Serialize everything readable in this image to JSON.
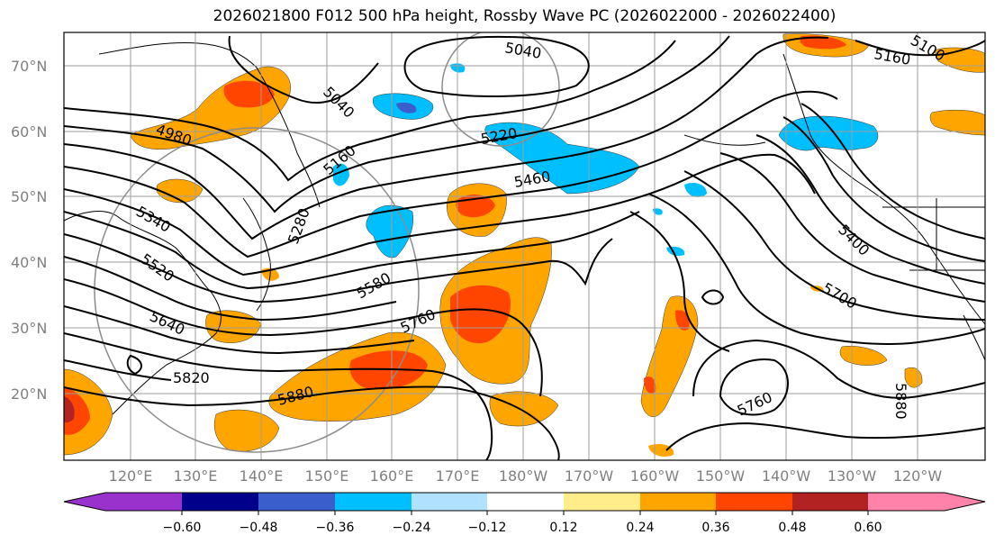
{
  "title": "2026021800 F012 500 hPa height, Rossby Wave PC (2026022000 - 2026022400)",
  "lat_labels": [
    "70°N",
    "60°N",
    "50°N",
    "40°N",
    "30°N",
    "20°N"
  ],
  "lon_labels": [
    "120°E",
    "130°E",
    "140°E",
    "150°E",
    "160°E",
    "170°E",
    "180°W",
    "170°W",
    "160°W",
    "150°W",
    "140°W",
    "130°W",
    "120°W"
  ],
  "contour_labels": [
    "5040",
    "5040",
    "5100",
    "5160",
    "4980",
    "5160",
    "5220",
    "5460",
    "5340",
    "5280",
    "5520",
    "5580",
    "5640",
    "5760",
    "5820",
    "5880",
    "5400",
    "5700",
    "5760",
    "5880"
  ],
  "colorbar": {
    "colors": [
      "#9932cc",
      "#00008b",
      "#3a5fcd",
      "#00bfff",
      "#b0e2ff",
      "#ffffff",
      "#ffec8b",
      "#ffa500",
      "#ff4500",
      "#b22222",
      "#ff82ab"
    ],
    "tick_labels": [
      "−0.60",
      "−0.48",
      "−0.36",
      "−0.24",
      "−0.12",
      "0.12",
      "0.24",
      "0.36",
      "0.48",
      "0.60"
    ]
  }
}
